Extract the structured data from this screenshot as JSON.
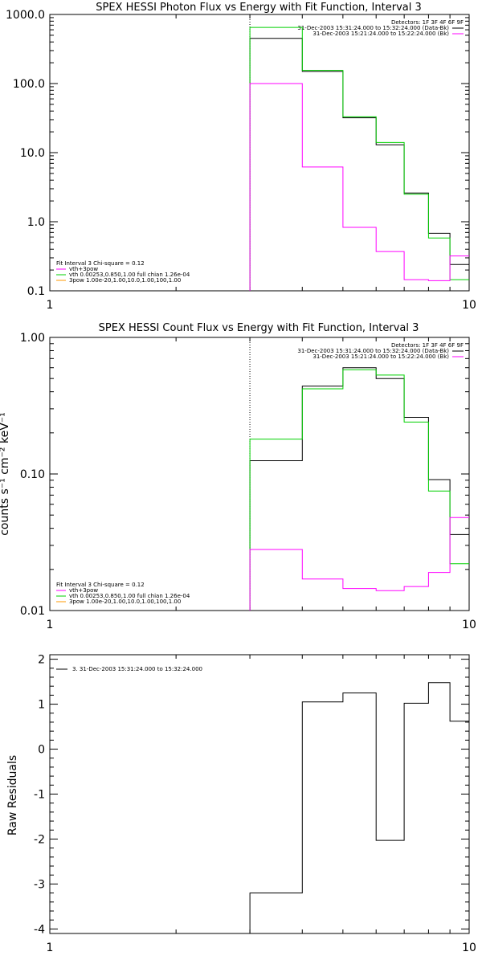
{
  "chart_data": [
    {
      "type": "line",
      "step": true,
      "title": "SPEX HESSI Photon Flux vs Energy with Fit Function, Interval 3",
      "xlabel": "",
      "ylabel": "",
      "xscale": "log",
      "yscale": "log",
      "xlim": [
        1,
        10
      ],
      "ylim": [
        0.1,
        1000
      ],
      "grid": false,
      "xticks": [
        "1",
        "10"
      ],
      "yticks": [
        "1000.0",
        "100.0",
        "10.0",
        "1.0",
        "0.1"
      ],
      "ytick_values": [
        1000,
        100,
        10,
        1,
        0.1
      ],
      "edges": [
        3,
        4,
        5,
        6,
        7,
        8,
        9,
        10
      ],
      "vline": 3,
      "legend_top": [
        "Detectors: 1F 3F 4F 6F 9F",
        "31-Dec-2003 15:31:24.000 to 15:32:24.000 (Data-Bk)",
        "31-Dec-2003 15:21:24.000 to 15:22:24.000 (Bk)"
      ],
      "legend_bottom": [
        "Fit Interval 3    Chi-square = 0.12",
        "vth+3pow",
        "vth 0.00253,0.850,1.00  full chian 1.26e-04",
        "3pow 1.00e-20,1.00,10.0,1.00,100,1.00"
      ],
      "series": [
        {
          "color": "#000000",
          "values": [
            450,
            150,
            32,
            13,
            2.6,
            0.68,
            0.24
          ]
        },
        {
          "color": "#00d000",
          "values": [
            650,
            155,
            33,
            14,
            2.5,
            0.58,
            0.145
          ]
        },
        {
          "color": "#ff00ff",
          "values": [
            100,
            6.2,
            0.83,
            0.37,
            0.145,
            0.14,
            0.32
          ]
        }
      ]
    },
    {
      "type": "line",
      "step": true,
      "title": "SPEX HESSI Count Flux vs Energy with Fit Function, Interval 3",
      "xlabel": "",
      "ylabel": "counts s⁻¹ cm⁻² keV⁻¹",
      "xscale": "log",
      "yscale": "log",
      "xlim": [
        1,
        10
      ],
      "ylim": [
        0.01,
        1
      ],
      "grid": false,
      "xticks": [
        "1",
        "10"
      ],
      "yticks": [
        "1.00",
        "0.10",
        "0.01"
      ],
      "ytick_values": [
        1,
        0.1,
        0.01
      ],
      "edges": [
        3,
        4,
        5,
        6,
        7,
        8,
        9,
        10
      ],
      "vline": 3,
      "legend_top": [
        "Detectors: 1F 3F 4F 6F 9F",
        "31-Dec-2003 15:31:24.000 to 15:32:24.000 (Data-Bk)",
        "31-Dec-2003 15:21:24.000 to 15:22:24.000 (Bk)"
      ],
      "legend_bottom": [
        "Fit Interval 3    Chi-square = 0.12",
        "vth+3pow",
        "vth 0.00253,0.850,1.00  full chian 1.26e-04",
        "3pow 1.00e-20,1.00,10.0,1.00,100,1.00"
      ],
      "series": [
        {
          "color": "#000000",
          "values": [
            0.125,
            0.44,
            0.6,
            0.5,
            0.26,
            0.091,
            0.036
          ]
        },
        {
          "color": "#00d000",
          "values": [
            0.18,
            0.42,
            0.58,
            0.53,
            0.24,
            0.075,
            0.022
          ]
        },
        {
          "color": "#ff00ff",
          "values": [
            0.028,
            0.017,
            0.0145,
            0.014,
            0.015,
            0.019,
            0.048
          ]
        }
      ]
    },
    {
      "type": "line",
      "step": true,
      "title": "",
      "xlabel": "",
      "ylabel": "Raw Residuals",
      "xscale": "log",
      "yscale": "linear",
      "xlim": [
        1,
        10
      ],
      "ylim": [
        -4.1,
        2.1
      ],
      "grid": false,
      "xticks": [
        "1",
        "10"
      ],
      "yticks": [
        "2",
        "1",
        "0",
        "-1",
        "-2",
        "-3",
        "-4"
      ],
      "ytick_values": [
        2,
        1,
        0,
        -1,
        -2,
        -3,
        -4
      ],
      "edges": [
        3,
        4,
        5,
        6,
        7,
        8,
        9,
        10
      ],
      "legend_top": [
        "3. 31-Dec-2003 15:31:24.000 to 15:32:24.000"
      ],
      "series": [
        {
          "color": "#000000",
          "values": [
            -3.2,
            1.05,
            1.25,
            -2.03,
            1.02,
            1.48,
            0.62
          ]
        }
      ]
    }
  ]
}
